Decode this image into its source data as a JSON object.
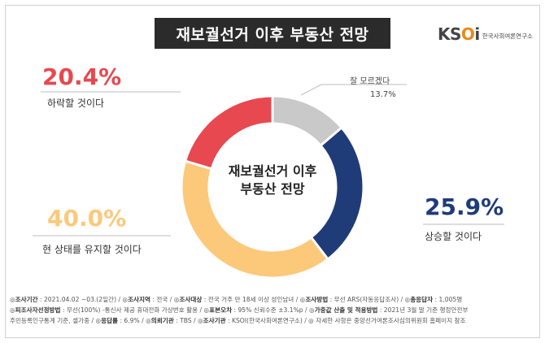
{
  "header": {
    "title": "재보궐선거 이후 부동산 전망"
  },
  "logo": {
    "mark_k": "K",
    "mark_s": "S",
    "mark_o": "O",
    "mark_i": "i",
    "sub": "한국사회여론연구소"
  },
  "chart_data": {
    "type": "pie",
    "title": "재보궐선거 이후 부동산 전망",
    "center_label": [
      "재보궐선거 이후",
      "부동산 전망"
    ],
    "slices": [
      {
        "label": "잘 모르겠다",
        "value": 13.7,
        "value_label": "13.7%",
        "color": "#c9c9c9"
      },
      {
        "label": "상승할 것이다",
        "value": 25.9,
        "value_label": "25.9%",
        "color": "#1f3c78"
      },
      {
        "label": "현 상태를 유지할 것이다",
        "value": 40.0,
        "value_label": "40.0%",
        "color": "#fcc97a"
      },
      {
        "label": "하락할 것이다",
        "value": 20.4,
        "value_label": "20.4%",
        "color": "#e8484f"
      }
    ]
  },
  "colors": {
    "down_text": "#e8484f",
    "hold_text": "#fcc97a",
    "up_text": "#1f3c78",
    "title_bg": "#2b2b2b"
  },
  "footer": {
    "row1": [
      {
        "k": "조사기간",
        "v": "2021.04.02 ~03.(2일간)"
      },
      {
        "k": "조사지역",
        "v": "전국"
      },
      {
        "k": "조사대상",
        "v": "전국 거주 만 18세 이상 성인남녀"
      },
      {
        "k": "조사방법",
        "v": "무선 ARS(자동응답조사)"
      },
      {
        "k": "총응답자",
        "v": "1,005명"
      }
    ],
    "row2": [
      {
        "k": "피조사자선정방법",
        "v": "무선(100%) -통신사 제공 휴대전화 가상번호 활용"
      },
      {
        "k": "표본오차",
        "v": "95% 신뢰수준 ±3.1%p"
      },
      {
        "k": "가중값 산출 및 적용방법",
        "v": "2021년 3월 말 기준 행정안전부"
      }
    ],
    "row3_lead": "주민등록인구통계 기준, 셀가중",
    "row3": [
      {
        "k": "응답률",
        "v": "6.9%"
      },
      {
        "k": "의뢰기관",
        "v": "TBS"
      },
      {
        "k": "조사기관",
        "v": "KSOI(한국사회여론연구소)"
      }
    ],
    "row3_tail": "자세한 사항은 중앙선거여론조사심의위원회 홈페이지 참조"
  }
}
